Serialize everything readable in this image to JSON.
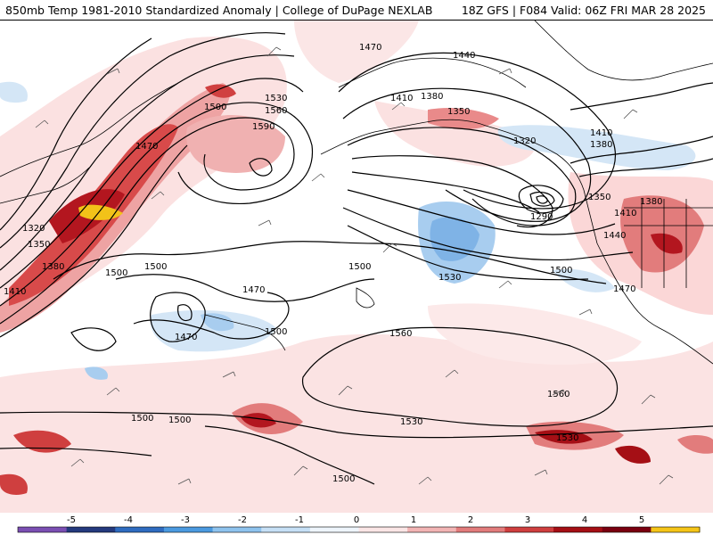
{
  "header": {
    "title_left": "850mb Temp 1981-2010 Standardized Anomaly | College of DuPage NEXLAB",
    "title_right": "18Z GFS | F084 Valid: 06Z FRI MAR 28 2025"
  },
  "map": {
    "background_color": "#ffffff",
    "contour_color": "#000000",
    "coastline_color": "#000000",
    "wind_barb_color": "#555555",
    "contour_labels": [
      "1470",
      "1440",
      "1410",
      "1380",
      "1350",
      "1530",
      "1560",
      "1590",
      "1500",
      "1320",
      "1290",
      "1350",
      "1500",
      "1470",
      "1470",
      "1500",
      "1560",
      "1560",
      "1530",
      "1500",
      "1500",
      "1530",
      "1500",
      "1410",
      "1380",
      "1380",
      "1410",
      "1440",
      "1530",
      "1500",
      "1470",
      "1350",
      "1380",
      "1410",
      "1320",
      "1500",
      "1470",
      "1500"
    ]
  },
  "colorbar": {
    "ticks": [
      "-5",
      "-4",
      "-3",
      "-2",
      "-1",
      "0",
      "1",
      "2",
      "3",
      "4",
      "5"
    ],
    "colors": [
      "#7b4fb3",
      "#243a7e",
      "#2f6cc0",
      "#4b9ae0",
      "#8ec3ee",
      "#c6e0f6",
      "#eef5fc",
      "#fbe6e6",
      "#f2b4b4",
      "#e27c7c",
      "#cf3f3f",
      "#a50f15",
      "#7a0010",
      "#f5c518"
    ]
  }
}
